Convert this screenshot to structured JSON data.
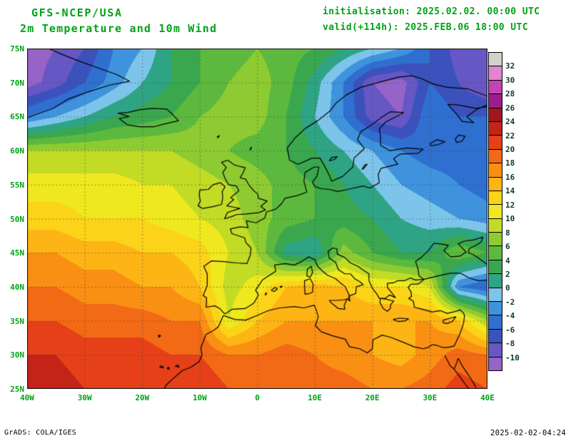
{
  "header": {
    "model": "GFS-NCEP/USA",
    "subtitle": "2m Temperature and 10m Wind",
    "init_line": "initialisation: 2025.02.02. 00:00 UTC",
    "valid_line": "valid(+114h): 2025.FEB.06 18:00 UTC"
  },
  "footer": {
    "left": "GrADS: COLA/IGES",
    "right": "2025-02-02-04:24"
  },
  "style": {
    "header_text_color": "#00a316",
    "axis_text_color": "#00a316",
    "colorbar_label_color": "#0d3d26",
    "footer_text_color": "#000000",
    "coastline_color": "#000000",
    "grid_line_color": "rgba(70,70,70,0.55)"
  },
  "chart_data": {
    "type": "heatmap",
    "title": "2m Temperature and 10m Wind",
    "units": "degC",
    "projection": "lat-lon",
    "lon_range": [
      -40,
      40
    ],
    "lat_range": [
      25,
      75
    ],
    "grid_lon_step": 10,
    "grid_lat_step": 5,
    "x_tick_labels": [
      "40W",
      "30W",
      "20W",
      "10W",
      "0",
      "10E",
      "20E",
      "30E",
      "40E"
    ],
    "x_tick_lons": [
      -40,
      -30,
      -20,
      -10,
      0,
      10,
      20,
      30,
      40
    ],
    "y_tick_labels": [
      "75N",
      "70N",
      "65N",
      "60N",
      "55N",
      "50N",
      "45N",
      "40N",
      "35N",
      "30N",
      "25N"
    ],
    "y_tick_lats": [
      75,
      70,
      65,
      60,
      55,
      50,
      45,
      40,
      35,
      30,
      25
    ],
    "colorbar": {
      "tick_labels_top_to_bottom": [
        "32",
        "30",
        "28",
        "26",
        "24",
        "22",
        "20",
        "18",
        "16",
        "14",
        "12",
        "10",
        "8",
        "6",
        "4",
        "2",
        "0",
        "-2",
        "-4",
        "-6",
        "-8",
        "-10"
      ],
      "levels_c": [
        -10,
        -8,
        -6,
        -4,
        -2,
        0,
        2,
        4,
        6,
        8,
        10,
        12,
        14,
        16,
        18,
        20,
        22,
        24,
        26,
        28,
        30,
        32
      ],
      "colors_cold_to_warm": [
        "#9663c6",
        "#6757c4",
        "#3b52bd",
        "#2f6fd0",
        "#3f93dd",
        "#7cc4ea",
        "#2fa484",
        "#3aa74f",
        "#5cb93e",
        "#8ecb32",
        "#c2dc26",
        "#f0e81e",
        "#fbd319",
        "#fdb515",
        "#f98f13",
        "#f26a15",
        "#e54017",
        "#c42317",
        "#a2161d",
        "#9c1d8e",
        "#c443b4",
        "#e287cf",
        "#cfd4cb"
      ]
    },
    "temperature_field_estimate_c": {
      "lons": [
        -40,
        -35,
        -30,
        -25,
        -20,
        -15,
        -10,
        -5,
        0,
        5,
        10,
        15,
        20,
        25,
        30,
        35,
        40
      ],
      "lats": [
        75,
        70,
        65,
        60,
        55,
        50,
        45,
        40,
        35,
        30,
        25
      ],
      "values_by_lat": [
        [
          -11,
          -10,
          -8,
          -4,
          -2,
          2,
          4,
          5,
          6,
          5,
          4,
          2,
          0,
          -2,
          -6,
          -9,
          -9
        ],
        [
          -11,
          -9,
          -6,
          -3,
          0,
          2,
          4,
          6,
          7,
          5,
          1,
          -4,
          -10,
          -11,
          -6,
          -8,
          -10
        ],
        [
          -4,
          -2,
          0,
          2,
          3,
          4,
          6,
          7,
          7,
          4,
          0,
          -4,
          -9,
          -10,
          -4,
          -6,
          -6
        ],
        [
          8,
          8,
          8,
          8,
          8,
          8,
          7,
          6,
          5,
          4,
          2,
          0,
          -2,
          -4,
          -5,
          -5,
          -6
        ],
        [
          11,
          11,
          11,
          11,
          10,
          10,
          9,
          8,
          7,
          5,
          4,
          2,
          0,
          -2,
          -3,
          -4,
          -5
        ],
        [
          13,
          13,
          12,
          12,
          12,
          11,
          10,
          9,
          7,
          5,
          4,
          3,
          2,
          0,
          -1,
          -2,
          -3
        ],
        [
          16,
          16,
          15,
          15,
          14,
          14,
          13,
          10,
          8,
          1,
          0,
          7,
          4,
          2,
          2,
          6,
          4
        ],
        [
          18,
          18,
          17,
          17,
          16,
          16,
          14,
          9,
          11,
          14,
          15,
          14,
          12,
          12,
          10,
          -4,
          -6
        ],
        [
          20,
          20,
          19,
          19,
          19,
          18,
          18,
          10,
          14,
          16,
          16,
          16,
          16,
          16,
          16,
          14,
          8
        ],
        [
          22,
          22,
          21,
          21,
          21,
          20,
          20,
          18,
          18,
          19,
          18,
          17,
          16,
          15,
          17,
          19,
          18
        ],
        [
          23,
          23,
          22,
          22,
          22,
          21,
          22,
          20,
          20,
          20,
          19,
          19,
          18,
          18,
          19,
          21,
          20
        ]
      ]
    }
  }
}
